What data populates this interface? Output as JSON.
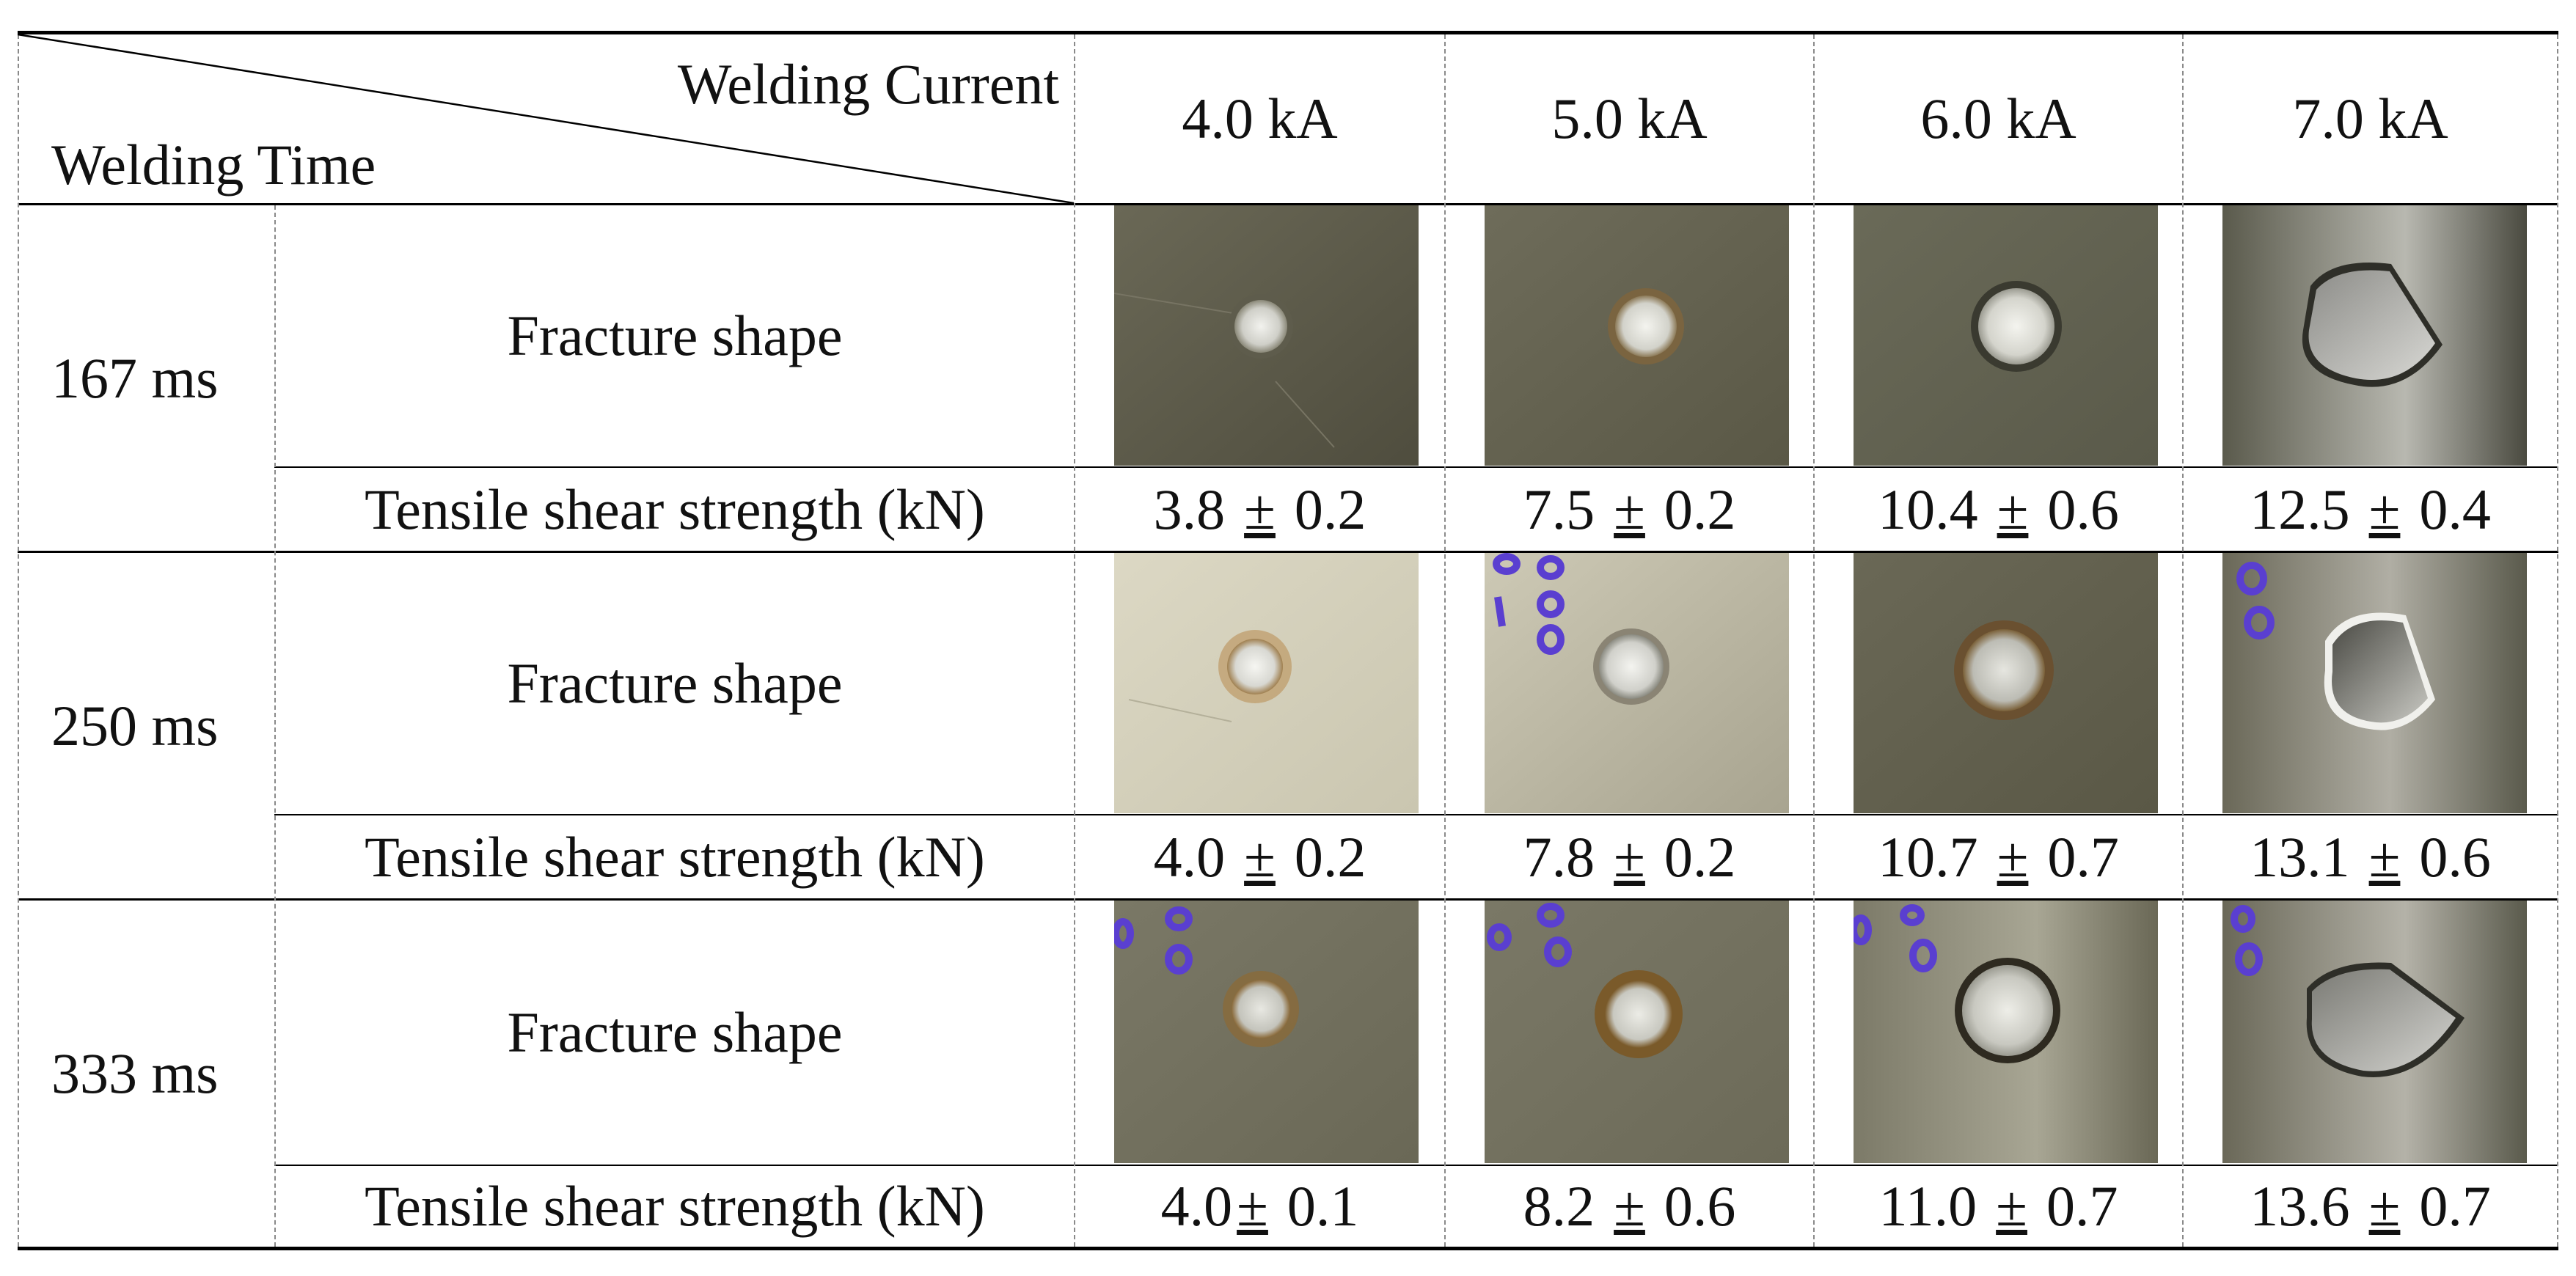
{
  "header": {
    "corner_top": "Welding Current",
    "corner_bottom": "Welding Time",
    "currents": [
      "4.0 kA",
      "5.0 kA",
      "6.0 kA",
      "7.0 kA"
    ]
  },
  "rows": [
    {
      "time": "167 ms",
      "fracture_label": "Fracture shape",
      "strength_label": "Tensile shear strength (kN)",
      "strengths": [
        {
          "mean": "3.8",
          "pm": "±",
          "sd": "0.2"
        },
        {
          "mean": "7.5",
          "pm": "±",
          "sd": "0.2"
        },
        {
          "mean": "10.4",
          "pm": "±",
          "sd": "0.6"
        },
        {
          "mean": "12.5",
          "pm": "±",
          "sd": "0.4"
        }
      ]
    },
    {
      "time": "250 ms",
      "fracture_label": "Fracture shape",
      "strength_label": "Tensile shear strength (kN)",
      "strengths": [
        {
          "mean": "4.0",
          "pm": "±",
          "sd": "0.2"
        },
        {
          "mean": "7.8",
          "pm": "±",
          "sd": "0.2"
        },
        {
          "mean": "10.7",
          "pm": "±",
          "sd": "0.7"
        },
        {
          "mean": "13.1",
          "pm": "±",
          "sd": "0.6"
        }
      ]
    },
    {
      "time": "333 ms",
      "fracture_label": "Fracture shape",
      "strength_label": "Tensile shear strength (kN)",
      "strengths": [
        {
          "mean": "4.0",
          "pm": "±",
          "sd": "0.1"
        },
        {
          "mean": "8.2",
          "pm": "±",
          "sd": "0.6"
        },
        {
          "mean": "11.0",
          "pm": "±",
          "sd": "0.7"
        },
        {
          "mean": "13.6",
          "pm": "±",
          "sd": "0.7"
        }
      ]
    }
  ],
  "photo_colors": {
    "plate_dark": "#5d5b4a",
    "plate_mid": "#8e8b78",
    "plate_light": "#d9d5c2",
    "nugget": "#e4e4de",
    "burn_ring": "#7a5a2a",
    "hole": "#b8b8b4",
    "marker": "#5a3fd0"
  }
}
